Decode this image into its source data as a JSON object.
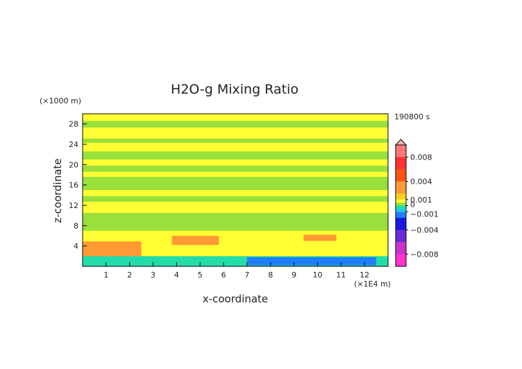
{
  "chart_data": {
    "type": "heatmap",
    "title": "H2O-g Mixing Ratio",
    "xlabel": "x-coordinate",
    "ylabel": "z-coordinate",
    "x_unit": "(×1E4 m)",
    "y_unit": "(×1000 m)",
    "time_label": "190800 s",
    "xlim": [
      0,
      13
    ],
    "ylim": [
      0,
      30
    ],
    "x_ticks": [
      "1",
      "2",
      "3",
      "4",
      "5",
      "6",
      "7",
      "8",
      "9",
      "10",
      "11",
      "12"
    ],
    "y_ticks": [
      "4",
      "8",
      "12",
      "16",
      "20",
      "24",
      "28"
    ],
    "colorbar": {
      "labels": [
        "0.008",
        "0.004",
        "0.001",
        "0",
        "−0.001",
        "−0.004",
        "−0.008"
      ],
      "label_values": [
        0.008,
        0.004,
        0.001,
        0,
        -0.001,
        -0.004,
        -0.008
      ],
      "range": [
        -0.01,
        0.01
      ],
      "stops": [
        {
          "value": -0.01,
          "color": "#ff33cc"
        },
        {
          "value": -0.008,
          "color": "#cc33cc"
        },
        {
          "value": -0.006,
          "color": "#6a2ad6"
        },
        {
          "value": -0.004,
          "color": "#1a1ae0"
        },
        {
          "value": -0.002,
          "color": "#1f7fff"
        },
        {
          "value": -0.001,
          "color": "#22c8d8"
        },
        {
          "value": -0.0005,
          "color": "#22ddaa"
        },
        {
          "value": 0,
          "color": "#99e03a"
        },
        {
          "value": 0.0005,
          "color": "#ffff33"
        },
        {
          "value": 0.001,
          "color": "#ffcc22"
        },
        {
          "value": 0.002,
          "color": "#ff9933"
        },
        {
          "value": 0.004,
          "color": "#ff5511"
        },
        {
          "value": 0.006,
          "color": "#ff3333"
        },
        {
          "value": 0.008,
          "color": "#ff7777"
        },
        {
          "value": 0.01,
          "color": "#ffb0b0"
        }
      ]
    },
    "background_color": "#ffff33",
    "regions": [
      {
        "x": [
          0,
          13
        ],
        "z": [
          27.3,
          28.6
        ],
        "class": "green"
      },
      {
        "x": [
          0,
          13
        ],
        "z": [
          24.3,
          25.1
        ],
        "class": "green"
      },
      {
        "x": [
          0,
          13
        ],
        "z": [
          21.0,
          22.6
        ],
        "class": "green"
      },
      {
        "x": [
          0,
          13
        ],
        "z": [
          18.6,
          19.8
        ],
        "class": "green"
      },
      {
        "x": [
          0,
          13
        ],
        "z": [
          15.0,
          17.6
        ],
        "class": "green"
      },
      {
        "x": [
          0,
          13
        ],
        "z": [
          12.7,
          13.8
        ],
        "class": "green"
      },
      {
        "x": [
          0,
          13
        ],
        "z": [
          7.0,
          10.5
        ],
        "class": "green"
      },
      {
        "x": [
          0,
          2.5
        ],
        "z": [
          1.8,
          4.9
        ],
        "class": "orange"
      },
      {
        "x": [
          3.8,
          5.8
        ],
        "z": [
          4.2,
          6.0
        ],
        "class": "orange"
      },
      {
        "x": [
          9.4,
          10.8
        ],
        "z": [
          5.0,
          6.2
        ],
        "class": "orange"
      },
      {
        "x": [
          0,
          13
        ],
        "z": [
          0,
          2.0
        ],
        "class": "cyan"
      },
      {
        "x": [
          7,
          12.5
        ],
        "z": [
          0.2,
          1.8
        ],
        "class": "blue"
      }
    ]
  }
}
